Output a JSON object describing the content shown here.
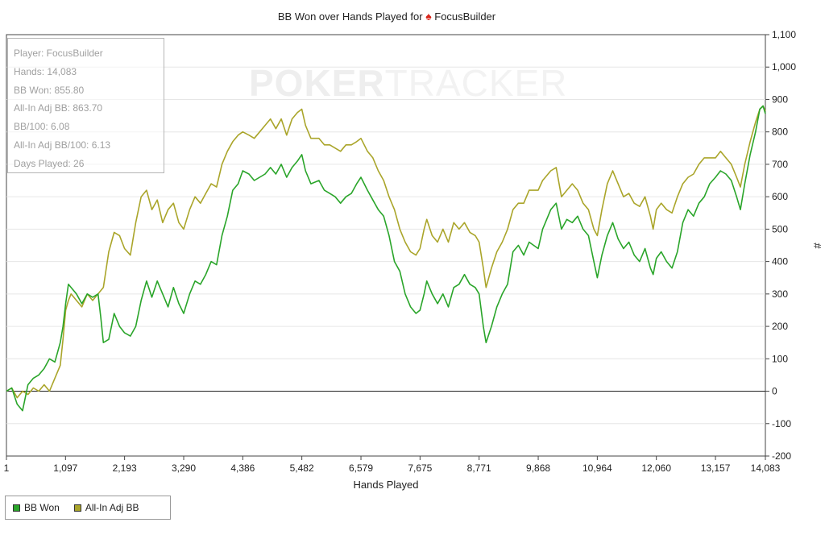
{
  "chart_data": {
    "type": "line",
    "title_prefix": "BB Won over Hands Played for",
    "title_player": "FocusBuilder",
    "xlabel": "Hands Played",
    "ylabel": "#",
    "xlim": [
      1,
      14083
    ],
    "ylim": [
      -200,
      1100
    ],
    "x_ticks": [
      "1",
      "1,097",
      "2,193",
      "3,290",
      "4,386",
      "5,482",
      "6,579",
      "7,675",
      "8,771",
      "9,868",
      "10,964",
      "12,060",
      "13,157",
      "14,083"
    ],
    "x_tick_values": [
      1,
      1097,
      2193,
      3290,
      4386,
      5482,
      6579,
      7675,
      8771,
      9868,
      10964,
      12060,
      13157,
      14083
    ],
    "y_ticks": [
      "1,100",
      "1,000",
      "900",
      "800",
      "700",
      "600",
      "500",
      "400",
      "300",
      "200",
      "100",
      "0",
      "-100",
      "-200"
    ],
    "y_tick_values": [
      1100,
      1000,
      900,
      800,
      700,
      600,
      500,
      400,
      300,
      200,
      100,
      0,
      -100,
      -200
    ],
    "grid": "horizontal",
    "legend_position": "bottom-left",
    "series": [
      {
        "name": "BB Won",
        "color": "#2aa52a",
        "points": [
          [
            1,
            0
          ],
          [
            100,
            10
          ],
          [
            200,
            -40
          ],
          [
            300,
            -60
          ],
          [
            400,
            20
          ],
          [
            500,
            40
          ],
          [
            600,
            50
          ],
          [
            700,
            70
          ],
          [
            800,
            100
          ],
          [
            900,
            90
          ],
          [
            1000,
            150
          ],
          [
            1050,
            200
          ],
          [
            1100,
            270
          ],
          [
            1150,
            330
          ],
          [
            1200,
            320
          ],
          [
            1300,
            300
          ],
          [
            1400,
            270
          ],
          [
            1500,
            300
          ],
          [
            1600,
            290
          ],
          [
            1700,
            300
          ],
          [
            1750,
            230
          ],
          [
            1800,
            150
          ],
          [
            1900,
            160
          ],
          [
            2000,
            240
          ],
          [
            2100,
            200
          ],
          [
            2193,
            180
          ],
          [
            2300,
            170
          ],
          [
            2400,
            200
          ],
          [
            2500,
            280
          ],
          [
            2600,
            340
          ],
          [
            2700,
            290
          ],
          [
            2800,
            340
          ],
          [
            2900,
            300
          ],
          [
            3000,
            260
          ],
          [
            3100,
            320
          ],
          [
            3200,
            270
          ],
          [
            3290,
            240
          ],
          [
            3400,
            300
          ],
          [
            3500,
            340
          ],
          [
            3600,
            330
          ],
          [
            3700,
            360
          ],
          [
            3800,
            400
          ],
          [
            3900,
            390
          ],
          [
            4000,
            480
          ],
          [
            4100,
            540
          ],
          [
            4200,
            620
          ],
          [
            4300,
            640
          ],
          [
            4386,
            680
          ],
          [
            4500,
            670
          ],
          [
            4600,
            650
          ],
          [
            4700,
            660
          ],
          [
            4800,
            670
          ],
          [
            4900,
            690
          ],
          [
            5000,
            670
          ],
          [
            5100,
            700
          ],
          [
            5200,
            660
          ],
          [
            5300,
            690
          ],
          [
            5400,
            710
          ],
          [
            5482,
            730
          ],
          [
            5550,
            680
          ],
          [
            5650,
            640
          ],
          [
            5800,
            650
          ],
          [
            5900,
            620
          ],
          [
            6000,
            610
          ],
          [
            6100,
            600
          ],
          [
            6200,
            580
          ],
          [
            6300,
            600
          ],
          [
            6400,
            610
          ],
          [
            6500,
            640
          ],
          [
            6579,
            660
          ],
          [
            6700,
            620
          ],
          [
            6800,
            590
          ],
          [
            6900,
            560
          ],
          [
            7000,
            540
          ],
          [
            7100,
            480
          ],
          [
            7200,
            400
          ],
          [
            7300,
            370
          ],
          [
            7400,
            300
          ],
          [
            7500,
            260
          ],
          [
            7600,
            240
          ],
          [
            7675,
            250
          ],
          [
            7750,
            300
          ],
          [
            7800,
            340
          ],
          [
            7900,
            300
          ],
          [
            8000,
            270
          ],
          [
            8100,
            300
          ],
          [
            8200,
            260
          ],
          [
            8300,
            320
          ],
          [
            8400,
            330
          ],
          [
            8500,
            360
          ],
          [
            8600,
            330
          ],
          [
            8700,
            320
          ],
          [
            8771,
            300
          ],
          [
            8850,
            200
          ],
          [
            8900,
            150
          ],
          [
            9000,
            200
          ],
          [
            9100,
            260
          ],
          [
            9200,
            300
          ],
          [
            9300,
            330
          ],
          [
            9400,
            430
          ],
          [
            9500,
            450
          ],
          [
            9600,
            420
          ],
          [
            9700,
            460
          ],
          [
            9868,
            440
          ],
          [
            9950,
            500
          ],
          [
            10000,
            520
          ],
          [
            10100,
            560
          ],
          [
            10200,
            580
          ],
          [
            10300,
            500
          ],
          [
            10400,
            530
          ],
          [
            10500,
            520
          ],
          [
            10600,
            540
          ],
          [
            10700,
            500
          ],
          [
            10800,
            480
          ],
          [
            10900,
            400
          ],
          [
            10964,
            350
          ],
          [
            11050,
            420
          ],
          [
            11150,
            480
          ],
          [
            11250,
            520
          ],
          [
            11350,
            470
          ],
          [
            11450,
            440
          ],
          [
            11550,
            460
          ],
          [
            11650,
            420
          ],
          [
            11750,
            400
          ],
          [
            11850,
            440
          ],
          [
            11950,
            380
          ],
          [
            12000,
            360
          ],
          [
            12060,
            410
          ],
          [
            12150,
            430
          ],
          [
            12250,
            400
          ],
          [
            12350,
            380
          ],
          [
            12450,
            430
          ],
          [
            12550,
            520
          ],
          [
            12650,
            560
          ],
          [
            12750,
            540
          ],
          [
            12850,
            580
          ],
          [
            12950,
            600
          ],
          [
            13050,
            640
          ],
          [
            13157,
            660
          ],
          [
            13250,
            680
          ],
          [
            13350,
            670
          ],
          [
            13450,
            650
          ],
          [
            13550,
            600
          ],
          [
            13620,
            560
          ],
          [
            13700,
            640
          ],
          [
            13800,
            730
          ],
          [
            13900,
            800
          ],
          [
            13980,
            870
          ],
          [
            14040,
            880
          ],
          [
            14083,
            856
          ]
        ]
      },
      {
        "name": "All-In Adj BB",
        "color": "#aaa52a",
        "points": [
          [
            1,
            0
          ],
          [
            100,
            10
          ],
          [
            200,
            -20
          ],
          [
            300,
            0
          ],
          [
            400,
            -10
          ],
          [
            500,
            10
          ],
          [
            600,
            0
          ],
          [
            700,
            20
          ],
          [
            800,
            0
          ],
          [
            900,
            40
          ],
          [
            1000,
            80
          ],
          [
            1050,
            160
          ],
          [
            1100,
            250
          ],
          [
            1150,
            280
          ],
          [
            1200,
            300
          ],
          [
            1300,
            280
          ],
          [
            1400,
            260
          ],
          [
            1500,
            300
          ],
          [
            1600,
            280
          ],
          [
            1700,
            300
          ],
          [
            1800,
            320
          ],
          [
            1900,
            430
          ],
          [
            2000,
            490
          ],
          [
            2100,
            480
          ],
          [
            2193,
            440
          ],
          [
            2300,
            420
          ],
          [
            2400,
            520
          ],
          [
            2500,
            600
          ],
          [
            2600,
            620
          ],
          [
            2700,
            560
          ],
          [
            2800,
            590
          ],
          [
            2900,
            520
          ],
          [
            3000,
            560
          ],
          [
            3100,
            580
          ],
          [
            3200,
            520
          ],
          [
            3290,
            500
          ],
          [
            3400,
            560
          ],
          [
            3500,
            600
          ],
          [
            3600,
            580
          ],
          [
            3700,
            610
          ],
          [
            3800,
            640
          ],
          [
            3900,
            630
          ],
          [
            4000,
            700
          ],
          [
            4100,
            740
          ],
          [
            4200,
            770
          ],
          [
            4300,
            790
          ],
          [
            4386,
            800
          ],
          [
            4500,
            790
          ],
          [
            4600,
            780
          ],
          [
            4700,
            800
          ],
          [
            4800,
            820
          ],
          [
            4900,
            840
          ],
          [
            5000,
            810
          ],
          [
            5100,
            840
          ],
          [
            5200,
            790
          ],
          [
            5300,
            840
          ],
          [
            5400,
            860
          ],
          [
            5482,
            870
          ],
          [
            5550,
            820
          ],
          [
            5650,
            780
          ],
          [
            5800,
            780
          ],
          [
            5900,
            760
          ],
          [
            6000,
            760
          ],
          [
            6100,
            750
          ],
          [
            6200,
            740
          ],
          [
            6300,
            760
          ],
          [
            6400,
            760
          ],
          [
            6500,
            770
          ],
          [
            6579,
            780
          ],
          [
            6700,
            740
          ],
          [
            6800,
            720
          ],
          [
            6900,
            680
          ],
          [
            7000,
            650
          ],
          [
            7100,
            600
          ],
          [
            7200,
            560
          ],
          [
            7300,
            500
          ],
          [
            7400,
            460
          ],
          [
            7500,
            430
          ],
          [
            7600,
            420
          ],
          [
            7675,
            440
          ],
          [
            7750,
            500
          ],
          [
            7800,
            530
          ],
          [
            7900,
            480
          ],
          [
            8000,
            460
          ],
          [
            8100,
            500
          ],
          [
            8200,
            460
          ],
          [
            8300,
            520
          ],
          [
            8400,
            500
          ],
          [
            8500,
            520
          ],
          [
            8600,
            490
          ],
          [
            8700,
            480
          ],
          [
            8771,
            460
          ],
          [
            8850,
            380
          ],
          [
            8900,
            320
          ],
          [
            9000,
            380
          ],
          [
            9100,
            430
          ],
          [
            9200,
            460
          ],
          [
            9300,
            500
          ],
          [
            9400,
            560
          ],
          [
            9500,
            580
          ],
          [
            9600,
            580
          ],
          [
            9700,
            620
          ],
          [
            9868,
            620
          ],
          [
            9950,
            650
          ],
          [
            10000,
            660
          ],
          [
            10100,
            680
          ],
          [
            10200,
            690
          ],
          [
            10300,
            600
          ],
          [
            10400,
            620
          ],
          [
            10500,
            640
          ],
          [
            10600,
            620
          ],
          [
            10700,
            580
          ],
          [
            10800,
            560
          ],
          [
            10900,
            500
          ],
          [
            10964,
            480
          ],
          [
            11050,
            560
          ],
          [
            11150,
            640
          ],
          [
            11250,
            680
          ],
          [
            11350,
            640
          ],
          [
            11450,
            600
          ],
          [
            11550,
            610
          ],
          [
            11650,
            580
          ],
          [
            11750,
            570
          ],
          [
            11850,
            600
          ],
          [
            11950,
            540
          ],
          [
            12000,
            500
          ],
          [
            12060,
            560
          ],
          [
            12150,
            580
          ],
          [
            12250,
            560
          ],
          [
            12350,
            550
          ],
          [
            12450,
            600
          ],
          [
            12550,
            640
          ],
          [
            12650,
            660
          ],
          [
            12750,
            670
          ],
          [
            12850,
            700
          ],
          [
            12950,
            720
          ],
          [
            13050,
            720
          ],
          [
            13157,
            720
          ],
          [
            13250,
            740
          ],
          [
            13350,
            720
          ],
          [
            13450,
            700
          ],
          [
            13550,
            660
          ],
          [
            13620,
            630
          ],
          [
            13700,
            700
          ],
          [
            13800,
            770
          ],
          [
            13900,
            830
          ],
          [
            13980,
            870
          ],
          [
            14040,
            880
          ],
          [
            14083,
            864
          ]
        ]
      }
    ]
  },
  "stats": {
    "player": "Player: FocusBuilder",
    "hands": "Hands: 14,083",
    "bb_won": "BB Won: 855.80",
    "allin_adj_bb": "All-In Adj BB: 863.70",
    "bb_100": "BB/100: 6.08",
    "allin_adj_bb_100": "All-In Adj BB/100: 6.13",
    "days_played": "Days Played: 26"
  },
  "watermark": {
    "bold": "POKER",
    "light": "TRACKER"
  },
  "legend": [
    {
      "label": "BB Won",
      "color": "#2aa52a"
    },
    {
      "label": "All-In Adj BB",
      "color": "#aaa52a"
    }
  ]
}
